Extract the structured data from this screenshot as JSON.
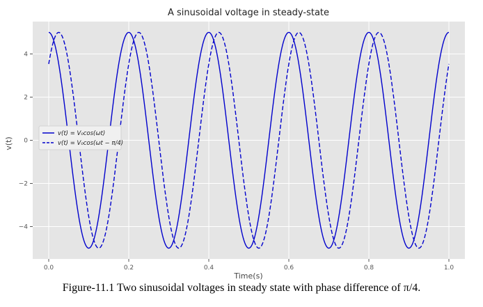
{
  "figure_caption": "Figure-11.1 Two sinusoidal voltages in steady state with phase difference of π/4.",
  "chart_data": {
    "type": "line",
    "title": "A sinusoidal voltage in steady-state",
    "xlabel": "Time(s)",
    "ylabel": "v(t)",
    "xlim": [
      -0.04,
      1.04
    ],
    "ylim": [
      -5.5,
      5.5
    ],
    "xticks": [
      0.0,
      0.2,
      0.4,
      0.6,
      0.8,
      1.0
    ],
    "xtick_labels": [
      "0.0",
      "0.2",
      "0.4",
      "0.6",
      "0.8",
      "1.0"
    ],
    "yticks": [
      -4,
      -2,
      0,
      2,
      4
    ],
    "ytick_labels": [
      "−4",
      "−2",
      "0",
      "2",
      "4"
    ],
    "grid": true,
    "legend_position": "center-left",
    "background": "#e5e5e5",
    "series": [
      {
        "name": "v(t) = V₀cos(ωt)",
        "color": "#0000cc",
        "style": "solid",
        "amplitude": 5,
        "frequency_hz": 5,
        "phase": 0
      },
      {
        "name": "v(t) = V₀cos(ωt − π/4)",
        "color": "#0000cc",
        "style": "dashed",
        "amplitude": 5,
        "frequency_hz": 5,
        "phase": -0.7854
      }
    ]
  }
}
